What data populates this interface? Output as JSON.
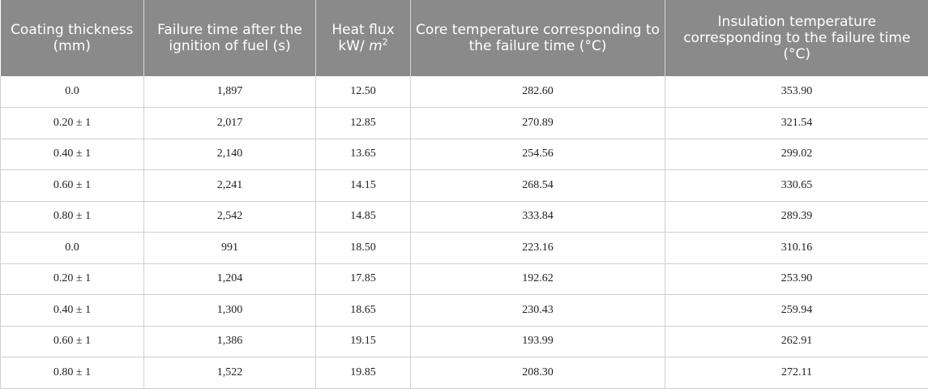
{
  "table": {
    "headers": {
      "coating": "Coating thickness (mm)",
      "failure": "Failure time after the ignition of fuel (s)",
      "flux_label": "Heat flux",
      "flux_unit": "kW/",
      "flux_unit_m": "m",
      "flux_unit_exp": "2",
      "core": "Core temperature corresponding to the failure time (°C)",
      "insulation": "Insulation temperature corresponding to the failure time (°C)"
    },
    "rows": [
      [
        "0.0",
        "1,897",
        "12.50",
        "282.60",
        "353.90"
      ],
      [
        "0.20 ± 1",
        "2,017",
        "12.85",
        "270.89",
        "321.54"
      ],
      [
        "0.40 ± 1",
        "2,140",
        "13.65",
        "254.56",
        "299.02"
      ],
      [
        "0.60 ± 1",
        "2,241",
        "14.15",
        "268.54",
        "330.65"
      ],
      [
        "0.80 ± 1",
        "2,542",
        "14.85",
        "333.84",
        "289.39"
      ],
      [
        "0.0",
        "991",
        "18.50",
        "223.16",
        "310.16"
      ],
      [
        "0.20 ± 1",
        "1,204",
        "17.85",
        "192.62",
        "253.90"
      ],
      [
        "0.40 ± 1",
        "1,300",
        "18.65",
        "230.43",
        "259.94"
      ],
      [
        "0.60 ± 1",
        "1,386",
        "19.15",
        "193.99",
        "262.91"
      ],
      [
        "0.80 ± 1",
        "1,522",
        "19.85",
        "208.30",
        "272.11"
      ]
    ]
  }
}
